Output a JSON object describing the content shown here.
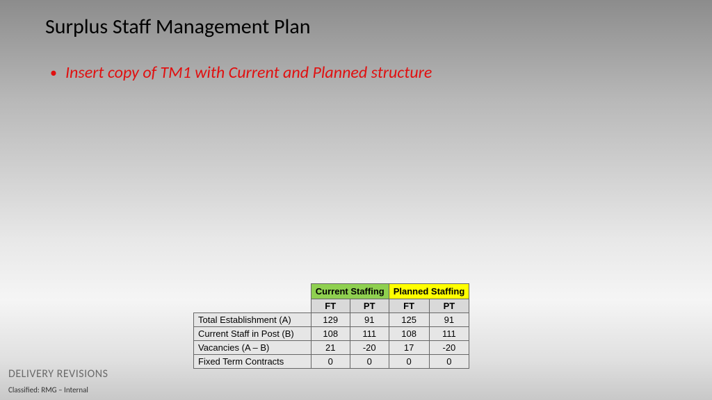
{
  "title": "Surplus Staff Management Plan",
  "bullet": "Insert copy of TM1 with Current and Planned structure",
  "footer_label": "DELIVERY REVISIONS",
  "classification": "Classified: RMG – Internal",
  "table": {
    "group_headers": [
      {
        "label": "Current Staffing",
        "bg": "#8fd050"
      },
      {
        "label": "Planned Staffing",
        "bg": "#ffff00"
      }
    ],
    "sub_headers": [
      "FT",
      "PT",
      "FT",
      "PT"
    ],
    "rows": [
      {
        "label": "Total Establishment (A)",
        "values": [
          "129",
          "91",
          "125",
          "91"
        ]
      },
      {
        "label": "Current Staff in Post (B)",
        "values": [
          "108",
          "111",
          "108",
          "111"
        ]
      },
      {
        "label": "Vacancies (A – B)",
        "values": [
          "21",
          "-20",
          "17",
          "-20"
        ]
      },
      {
        "label": "Fixed Term Contracts",
        "values": [
          "0",
          "0",
          "0",
          "0"
        ]
      }
    ]
  }
}
